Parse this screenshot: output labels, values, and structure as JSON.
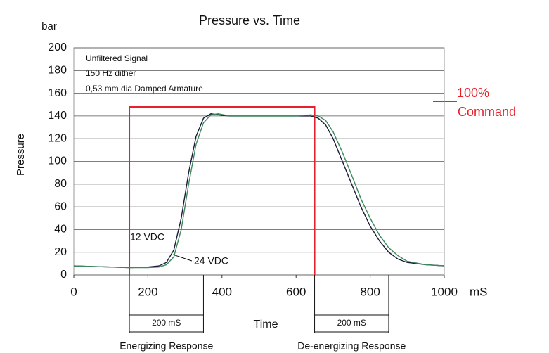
{
  "chart_data": {
    "type": "line",
    "title": "Pressure vs. Time",
    "x_label": "Time",
    "y_label": "Pressure",
    "y_unit": "bar",
    "x_unit": "mS",
    "x": [
      0,
      50,
      100,
      150,
      200,
      230,
      250,
      270,
      290,
      310,
      330,
      350,
      370,
      390,
      420,
      500,
      600,
      640,
      660,
      680,
      700,
      725,
      750,
      775,
      800,
      825,
      850,
      875,
      900,
      950,
      1000
    ],
    "series": [
      {
        "name": "12 VDC",
        "color": "#1a1a3a",
        "values": [
          8,
          7.5,
          7,
          6.5,
          7,
          8,
          11,
          22,
          50,
          90,
          122,
          138,
          142,
          141,
          140,
          140,
          140,
          140,
          138,
          132,
          120,
          100,
          80,
          60,
          43,
          30,
          20,
          14,
          11,
          9,
          8
        ]
      },
      {
        "name": "24 VDC",
        "color": "#3a8a5a",
        "values": [
          8,
          7.5,
          7,
          6.5,
          6.5,
          7,
          9,
          16,
          40,
          80,
          115,
          134,
          141,
          142,
          140,
          140,
          140,
          141,
          140,
          136,
          126,
          108,
          88,
          67,
          50,
          35,
          24,
          17,
          12,
          9,
          8
        ]
      }
    ],
    "command": {
      "label": [
        "100%",
        "Command"
      ],
      "color": "#e8202a",
      "x": [
        150,
        150,
        650,
        650
      ],
      "values": [
        0,
        148,
        148,
        0
      ]
    },
    "notes": [
      "Unfiltered Signal",
      "150 Hz dither",
      "0,53 mm dia Damped Armature"
    ],
    "spans": [
      {
        "label": "200 mS",
        "caption": "Energizing Response",
        "start": 150,
        "end": 350
      },
      {
        "label": "200 mS",
        "caption": "De-energizing Response",
        "start": 650,
        "end": 850
      }
    ],
    "xlim": [
      0,
      1000
    ],
    "xticks": [
      0,
      200,
      400,
      600,
      800,
      1000
    ],
    "ylim": [
      0,
      200
    ],
    "yticks": [
      0,
      20,
      40,
      60,
      80,
      100,
      120,
      140,
      160,
      180,
      200
    ],
    "grid": true
  }
}
